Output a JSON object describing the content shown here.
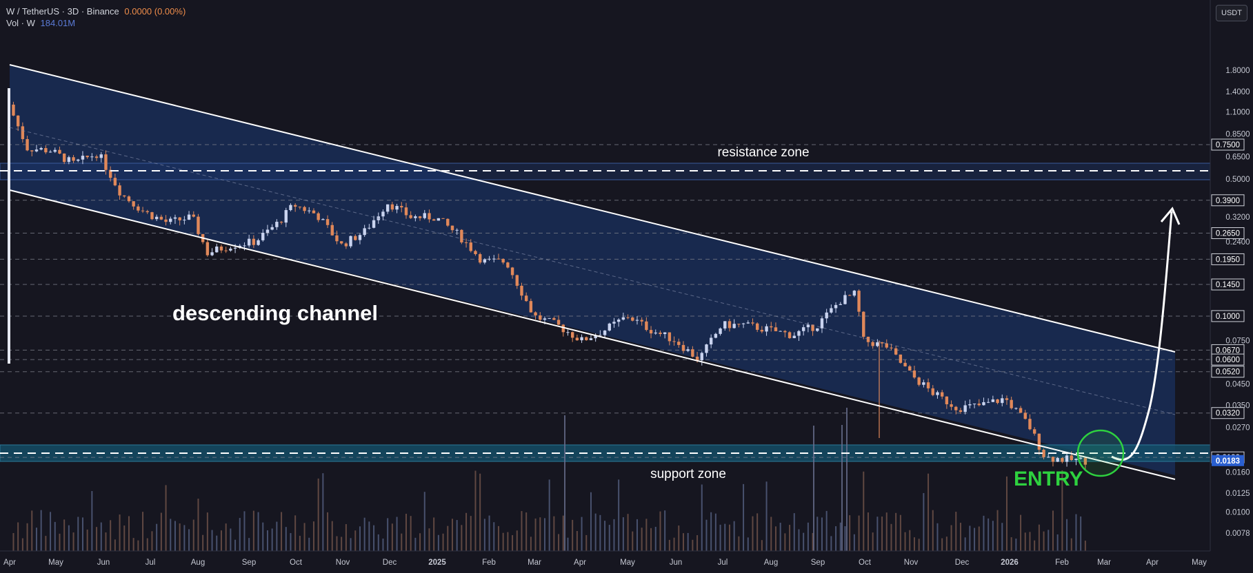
{
  "legend": {
    "symbol": "W / TetherUS · 3D · Binance",
    "change": "0.0000 (0.00%)",
    "vol_label": "Vol · W",
    "vol_value": "184.01M"
  },
  "currency_label": "USDT",
  "colors": {
    "background": "#161620",
    "up": "#c9d3ef",
    "down": "#e0885a",
    "channel_fill": "#1c3a75",
    "support_fill": "#14506a",
    "entry": "#2ed13f",
    "annotation": "#ffffff"
  },
  "chart_data": {
    "type": "candlestick",
    "y_scale": "log",
    "ylim": [
      0.0065,
      2.2
    ],
    "y_ticks": [
      "1.8000",
      "1.4000",
      "1.1000",
      "0.8500",
      "0.6500",
      "0.5000",
      "0.3200",
      "0.2400",
      "0.0750",
      "0.0450",
      "0.0350",
      "0.0270",
      "0.0160",
      "0.0125",
      "0.0100",
      "0.0078"
    ],
    "level_lines": [
      "0.7500",
      "0.3900",
      "0.2650",
      "0.1950",
      "0.1450",
      "0.1000",
      "0.0670",
      "0.0600",
      "0.0520",
      "0.0320",
      "0.0190"
    ],
    "current_price": "0.0183",
    "x_ticks": [
      "Apr",
      "May",
      "Jun",
      "Jul",
      "Aug",
      "Sep",
      "Oct",
      "Nov",
      "Dec",
      "2025",
      "Feb",
      "Mar",
      "Apr",
      "May",
      "Jun",
      "Jul",
      "Aug",
      "Sep",
      "Oct",
      "Nov",
      "Dec",
      "2026",
      "Feb",
      "Mar",
      "Apr",
      "May"
    ],
    "price_path": [
      [
        "2024-04-03",
        1.2
      ],
      [
        "2024-04-15",
        0.72
      ],
      [
        "2024-04-30",
        0.7
      ],
      [
        "2024-05-15",
        0.6
      ],
      [
        "2024-05-31",
        0.68
      ],
      [
        "2024-06-15",
        0.42
      ],
      [
        "2024-06-30",
        0.34
      ],
      [
        "2024-07-15",
        0.3
      ],
      [
        "2024-07-31",
        0.32
      ],
      [
        "2024-08-10",
        0.21
      ],
      [
        "2024-08-25",
        0.23
      ],
      [
        "2024-09-10",
        0.24
      ],
      [
        "2024-09-25",
        0.3
      ],
      [
        "2024-10-05",
        0.37
      ],
      [
        "2024-10-20",
        0.33
      ],
      [
        "2024-11-05",
        0.23
      ],
      [
        "2024-11-20",
        0.27
      ],
      [
        "2024-12-05",
        0.38
      ],
      [
        "2024-12-20",
        0.32
      ],
      [
        "2025-01-05",
        0.32
      ],
      [
        "2025-01-20",
        0.26
      ],
      [
        "2025-02-05",
        0.19
      ],
      [
        "2025-02-20",
        0.19
      ],
      [
        "2025-03-10",
        0.1
      ],
      [
        "2025-03-25",
        0.09
      ],
      [
        "2025-04-10",
        0.075
      ],
      [
        "2025-04-25",
        0.085
      ],
      [
        "2025-05-10",
        0.1
      ],
      [
        "2025-05-25",
        0.085
      ],
      [
        "2025-06-10",
        0.075
      ],
      [
        "2025-06-25",
        0.06
      ],
      [
        "2025-07-10",
        0.09
      ],
      [
        "2025-07-25",
        0.09
      ],
      [
        "2025-08-10",
        0.085
      ],
      [
        "2025-08-25",
        0.08
      ],
      [
        "2025-09-10",
        0.09
      ],
      [
        "2025-09-25",
        0.12
      ],
      [
        "2025-10-05",
        0.13
      ],
      [
        "2025-10-10",
        0.075
      ],
      [
        "2025-10-25",
        0.07
      ],
      [
        "2025-11-10",
        0.05
      ],
      [
        "2025-11-25",
        0.04
      ],
      [
        "2025-12-10",
        0.034
      ],
      [
        "2025-12-25",
        0.035
      ],
      [
        "2026-01-10",
        0.038
      ],
      [
        "2026-01-25",
        0.028
      ],
      [
        "2026-02-05",
        0.019
      ],
      [
        "2026-02-20",
        0.0185
      ],
      [
        "2026-03-01",
        0.0183
      ]
    ],
    "annotations": {
      "resistance": "resistance zone",
      "channel": "descending channel",
      "support": "support zone",
      "entry": "ENTRY"
    }
  }
}
